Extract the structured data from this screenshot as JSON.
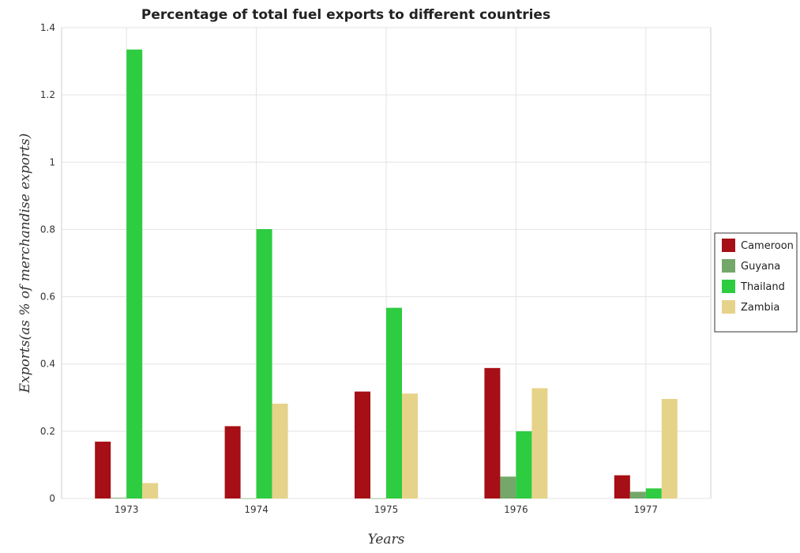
{
  "chart_data": {
    "type": "bar",
    "title": "Percentage of total fuel exports to different countries",
    "xlabel": "Years",
    "ylabel": "Exports(as % of merchandise exports)",
    "categories": [
      "1973",
      "1974",
      "1975",
      "1976",
      "1977"
    ],
    "ylim": [
      0,
      1.4
    ],
    "yticks": [
      0,
      0.2,
      0.4,
      0.6,
      0.8,
      1.0,
      1.2,
      1.4
    ],
    "ytick_labels": [
      "0",
      "0.2",
      "0.4",
      "0.6",
      "0.8",
      "1",
      "1.2",
      "1.4"
    ],
    "grid": true,
    "legend_position": "right",
    "series": [
      {
        "name": "Cameroon",
        "color": "#a50f15",
        "values": [
          0.169,
          0.215,
          0.318,
          0.388,
          0.069
        ]
      },
      {
        "name": "Guyana",
        "color": "#74a76a",
        "values": [
          0.002,
          0.0005,
          0.0005,
          0.065,
          0.02
        ]
      },
      {
        "name": "Thailand",
        "color": "#2ecc40",
        "values": [
          1.335,
          0.801,
          0.567,
          0.2,
          0.03
        ]
      },
      {
        "name": "Zambia",
        "color": "#e6d38a",
        "values": [
          0.046,
          0.282,
          0.312,
          0.328,
          0.296
        ]
      }
    ]
  }
}
